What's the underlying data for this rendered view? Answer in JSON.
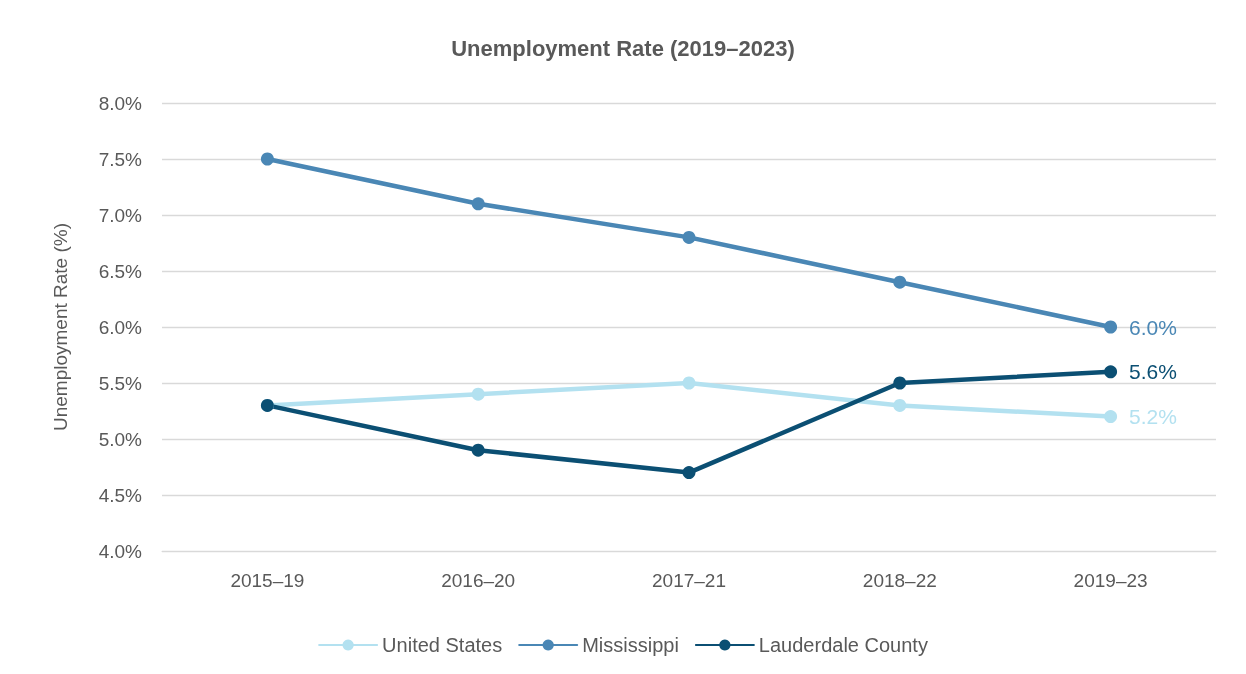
{
  "chart_data": {
    "type": "line",
    "title": "Unemployment Rate (2019–2023)",
    "ylabel": "Unemployment Rate (%)",
    "categories": [
      "2015–19",
      "2016–20",
      "2017–21",
      "2018–22",
      "2019–23"
    ],
    "series": [
      {
        "name": "United States",
        "color": "#b3e1f0",
        "values": [
          5.3,
          5.4,
          5.5,
          5.3,
          5.2
        ],
        "value_labels": [
          null,
          null,
          null,
          null,
          "5.2%"
        ]
      },
      {
        "name": "Mississippi",
        "color": "#4a87b5",
        "values": [
          7.5,
          7.1,
          6.8,
          6.4,
          6.0
        ],
        "value_labels": [
          null,
          null,
          null,
          null,
          "6.0%"
        ]
      },
      {
        "name": "Lauderdale County",
        "color": "#0b4f73",
        "values": [
          5.3,
          4.9,
          4.7,
          5.5,
          5.6
        ],
        "value_labels": [
          null,
          null,
          null,
          null,
          "5.6%"
        ]
      }
    ],
    "ylim": [
      4.0,
      8.0
    ],
    "yticks": [
      {
        "value": 4.0,
        "label": "4.0%"
      },
      {
        "value": 4.5,
        "label": "4.5%"
      },
      {
        "value": 5.0,
        "label": "5.0%"
      },
      {
        "value": 5.5,
        "label": "5.5%"
      },
      {
        "value": 6.0,
        "label": "6.0%"
      },
      {
        "value": 6.5,
        "label": "6.5%"
      },
      {
        "value": 7.0,
        "label": "7.0%"
      },
      {
        "value": 7.5,
        "label": "7.5%"
      },
      {
        "value": 8.0,
        "label": "8.0%"
      }
    ],
    "grid": "y",
    "legend": "bottom",
    "marker": "circle",
    "line_style": "solid"
  }
}
